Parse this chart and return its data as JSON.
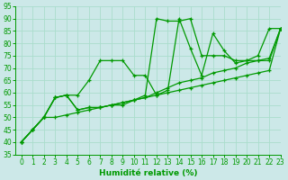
{
  "xlabel": "Humidité relative (%)",
  "xlim": [
    -0.5,
    23
  ],
  "ylim": [
    35,
    95
  ],
  "yticks": [
    35,
    40,
    45,
    50,
    55,
    60,
    65,
    70,
    75,
    80,
    85,
    90,
    95
  ],
  "xticks": [
    0,
    1,
    2,
    3,
    4,
    5,
    6,
    7,
    8,
    9,
    10,
    11,
    12,
    13,
    14,
    15,
    16,
    17,
    18,
    19,
    20,
    21,
    22,
    23
  ],
  "bg_color": "#cce8e8",
  "grid_color": "#aaddcc",
  "line_color": "#009900",
  "linewidth": 0.9,
  "markersize": 3,
  "lines": [
    [
      40,
      45,
      50,
      58,
      59,
      59,
      65,
      73,
      73,
      73,
      67,
      67,
      59,
      61,
      90,
      78,
      67,
      84,
      77,
      72,
      73,
      75,
      86,
      86
    ],
    [
      40,
      45,
      50,
      58,
      59,
      53,
      54,
      54,
      55,
      56,
      57,
      58,
      60,
      62,
      64,
      65,
      66,
      68,
      69,
      70,
      72,
      73,
      74,
      86
    ],
    [
      40,
      45,
      50,
      58,
      59,
      53,
      54,
      54,
      55,
      55,
      57,
      59,
      90,
      89,
      89,
      90,
      75,
      75,
      75,
      73,
      73,
      73,
      73,
      86
    ],
    [
      40,
      45,
      50,
      50,
      51,
      52,
      53,
      54,
      55,
      56,
      57,
      58,
      59,
      60,
      61,
      62,
      63,
      64,
      65,
      66,
      67,
      68,
      69,
      86
    ]
  ],
  "tick_fontsize": 5.5,
  "xlabel_fontsize": 6.5
}
